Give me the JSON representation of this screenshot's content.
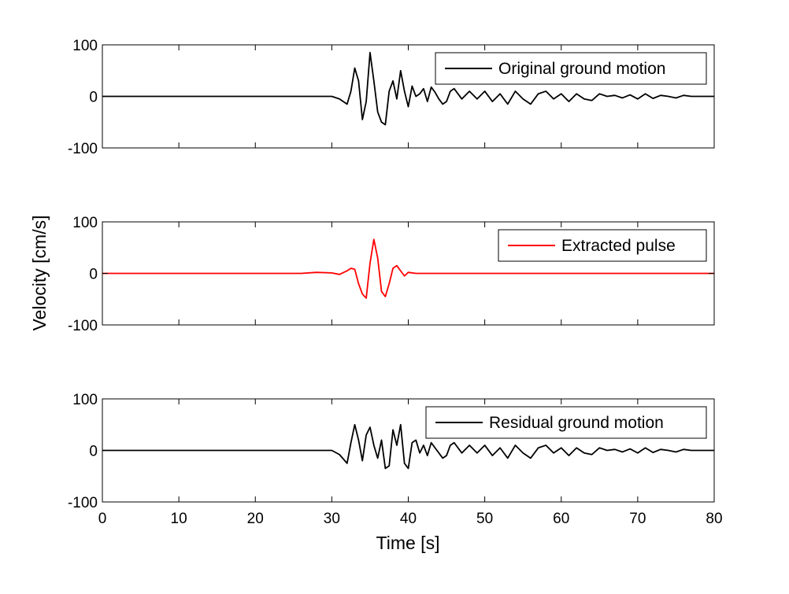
{
  "chart_data": {
    "type": "line",
    "xlabel": "Time [s]",
    "ylabel": "Velocity [cm/s]",
    "xlim": [
      0,
      80
    ],
    "x_ticks": [
      0,
      10,
      20,
      30,
      40,
      50,
      60,
      70,
      80
    ],
    "ylim": [
      -100,
      100
    ],
    "y_ticks": [
      -100,
      0,
      100
    ],
    "grid": false,
    "legend_position": "top-right",
    "panels": [
      {
        "series_name": "Original ground motion",
        "color": "#000000",
        "x": [
          0,
          10,
          20,
          28,
          30,
          31,
          32,
          32.5,
          33,
          33.5,
          34,
          34.5,
          35,
          35.5,
          36,
          36.5,
          37,
          37.5,
          38,
          38.5,
          39,
          39.5,
          40,
          40.5,
          41,
          41.5,
          42,
          42.5,
          43,
          43.5,
          44,
          44.5,
          45,
          45.5,
          46,
          47,
          48,
          49,
          50,
          51,
          52,
          53,
          54,
          55,
          56,
          57,
          58,
          59,
          60,
          61,
          62,
          63,
          64,
          65,
          66,
          67,
          68,
          69,
          70,
          71,
          72,
          73,
          74,
          75,
          76,
          77,
          78,
          79,
          80
        ],
        "y": [
          0,
          0,
          0,
          0,
          0,
          -5,
          -15,
          10,
          55,
          30,
          -45,
          -10,
          85,
          30,
          -30,
          -50,
          -55,
          10,
          30,
          -5,
          50,
          10,
          -20,
          20,
          0,
          5,
          15,
          -10,
          18,
          8,
          -5,
          -15,
          -10,
          10,
          15,
          -5,
          10,
          -5,
          10,
          -10,
          5,
          -15,
          10,
          -5,
          -15,
          5,
          10,
          -5,
          5,
          -10,
          5,
          -5,
          -8,
          5,
          0,
          2,
          -3,
          3,
          -5,
          5,
          -4,
          2,
          0,
          -3,
          2,
          0,
          0,
          0,
          0
        ]
      },
      {
        "series_name": "Extracted pulse",
        "color": "#ff0000",
        "x": [
          0,
          26,
          28,
          30,
          31,
          32,
          32.5,
          33,
          33.5,
          34,
          34.5,
          35,
          35.5,
          36,
          36.5,
          37,
          37.5,
          38,
          38.5,
          39,
          39.5,
          40,
          41,
          42,
          80
        ],
        "y": [
          0,
          0,
          2,
          1,
          -2,
          5,
          10,
          8,
          -20,
          -40,
          -48,
          20,
          66,
          30,
          -35,
          -45,
          -20,
          10,
          15,
          5,
          -5,
          2,
          0,
          0,
          0
        ]
      },
      {
        "series_name": "Residual ground motion",
        "color": "#000000",
        "x": [
          0,
          10,
          20,
          28,
          30,
          31,
          32,
          32.5,
          33,
          33.5,
          34,
          34.5,
          35,
          35.5,
          36,
          36.5,
          37,
          37.5,
          38,
          38.5,
          39,
          39.5,
          40,
          40.5,
          41,
          41.5,
          42,
          42.5,
          43,
          43.5,
          44,
          44.5,
          45,
          45.5,
          46,
          47,
          48,
          49,
          50,
          51,
          52,
          53,
          54,
          55,
          56,
          57,
          58,
          59,
          60,
          61,
          62,
          63,
          64,
          65,
          66,
          67,
          68,
          69,
          70,
          71,
          72,
          73,
          74,
          75,
          76,
          77,
          78,
          79,
          80
        ],
        "y": [
          0,
          0,
          0,
          0,
          0,
          -8,
          -25,
          15,
          50,
          20,
          -20,
          30,
          45,
          10,
          -15,
          20,
          -35,
          -30,
          40,
          10,
          50,
          -25,
          -35,
          15,
          20,
          -5,
          10,
          -10,
          15,
          5,
          -5,
          -15,
          -10,
          10,
          15,
          -5,
          10,
          -5,
          10,
          -10,
          5,
          -15,
          10,
          -5,
          -15,
          5,
          10,
          -5,
          5,
          -10,
          5,
          -5,
          -8,
          5,
          0,
          2,
          -3,
          3,
          -5,
          5,
          -4,
          2,
          0,
          -3,
          2,
          0,
          0,
          0,
          0
        ]
      }
    ]
  }
}
